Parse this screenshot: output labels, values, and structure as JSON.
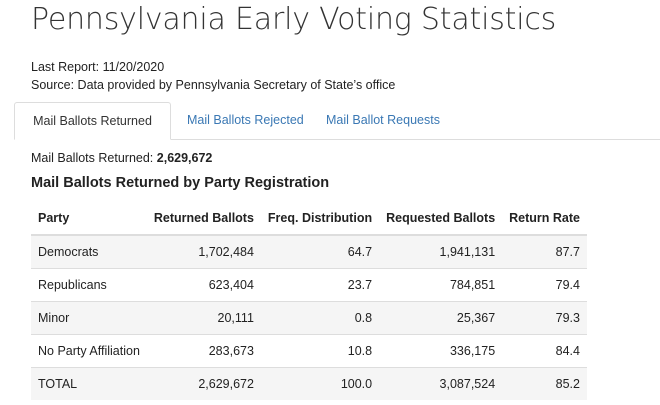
{
  "page": {
    "title": "Pennsylvania Early Voting Statistics",
    "last_report": "Last Report: 11/20/2020",
    "source": "Source: Data provided by Pennsylvania Secretary of State’s office"
  },
  "tabs": [
    {
      "label": "Mail Ballots Returned",
      "active": true
    },
    {
      "label": "Mail Ballots Rejected",
      "active": false
    },
    {
      "label": "Mail Ballot Requests",
      "active": false
    }
  ],
  "summary": {
    "label": "Mail Ballots Returned: ",
    "value": "2,629,672"
  },
  "section_title": "Mail Ballots Returned by Party Registration",
  "table": {
    "headers": [
      "Party",
      "Returned Ballots",
      "Freq. Distribution",
      "Requested Ballots",
      "Return Rate"
    ],
    "rows": [
      [
        "Democrats",
        "1,702,484",
        "64.7",
        "1,941,131",
        "87.7"
      ],
      [
        "Republicans",
        "623,404",
        "23.7",
        "784,851",
        "79.4"
      ],
      [
        "Minor",
        "20,111",
        "0.8",
        "25,367",
        "79.3"
      ],
      [
        "No Party Affiliation",
        "283,673",
        "10.8",
        "336,175",
        "84.4"
      ],
      [
        "TOTAL",
        "2,629,672",
        "100.0",
        "3,087,524",
        "85.2"
      ]
    ]
  },
  "colors": {
    "link": "#3a78b4",
    "border": "#dddddd",
    "stripe": "#f5f5f5"
  }
}
